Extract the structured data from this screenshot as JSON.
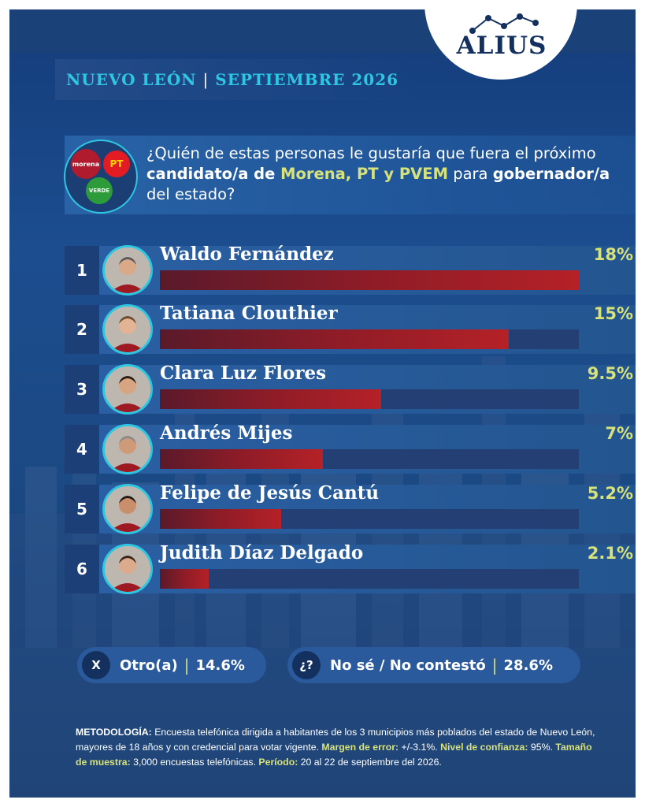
{
  "logo": {
    "text": "ALIUS"
  },
  "header": {
    "region": "NUEVO LEÓN",
    "separator": "|",
    "date": "SEPTIEMBRE 2026"
  },
  "parties": [
    {
      "name": "morena",
      "color": "#b01c2e"
    },
    {
      "name": "PT",
      "color": "#e31b23"
    },
    {
      "name": "VERDE",
      "color": "#2e9b3b"
    }
  ],
  "question": {
    "part1": "¿Quién de estas personas le gustaría que fuera el próximo ",
    "bold1": "candidato/a de ",
    "highlight": "Morena, PT y PVEM",
    "part2": " para ",
    "bold2": "gobernador/a",
    "part3": " del estado?"
  },
  "chart_data": {
    "type": "bar",
    "title": "",
    "categories": [
      "Waldo Fernández",
      "Tatiana Clouthier",
      "Clara Luz Flores",
      "Andrés Mijes",
      "Felipe de Jesús Cantú",
      "Judith Díaz Delgado"
    ],
    "ranks": [
      "1",
      "2",
      "3",
      "4",
      "5",
      "6"
    ],
    "values": [
      18,
      15,
      9.5,
      7,
      5.2,
      2.1
    ],
    "value_labels": [
      "18%",
      "15%",
      "9.5%",
      "7%",
      "5.2%",
      "2.1%"
    ],
    "xlim": [
      0,
      18
    ],
    "bar_color": "#b52127",
    "label_color": "#d8e27a"
  },
  "other": {
    "icon": "X",
    "label": "Otro(a)",
    "separator": "|",
    "value": "14.6%"
  },
  "unknown": {
    "icon": "¿?",
    "label": "No sé / No contestó",
    "separator": "|",
    "value": "28.6%"
  },
  "methodology": {
    "k1": "METODOLOGÍA:",
    "t1": " Encuesta telefónica dirigida a habitantes de los 3 municipios más poblados del estado de Nuevo León, mayores de 18 años y con credencial para votar vigente. ",
    "k2": "Margen de error:",
    "t2": " +/-3.1%. ",
    "k3": "Nivel de confianza:",
    "t3": " 95%. ",
    "k4": "Tamaño de muestra:",
    "t4": " 3,000 encuestas telefónicas. ",
    "k5": "Período:",
    "t5": " 20 al 22 de septiembre del 2026."
  }
}
